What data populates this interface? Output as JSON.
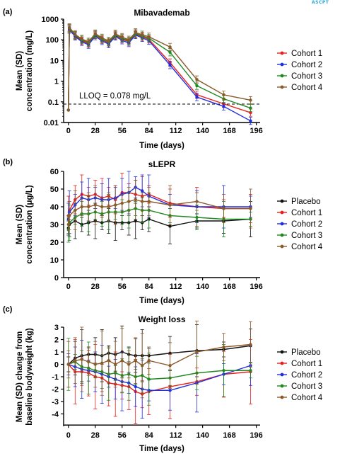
{
  "logo": {
    "text": "ASCPT",
    "color": "#2aa6d8"
  },
  "colors": {
    "Placebo": "#111111",
    "Cohort 1": "#e8201c",
    "Cohort 2": "#1f2fe0",
    "Cohort 3": "#1f8a1f",
    "Cohort 4": "#8b5a2b"
  },
  "chart_data": [
    {
      "panel": "(a)",
      "type": "line",
      "title": "Mibavademab",
      "xlabel": "Time (days)",
      "ylabel": "Mean (SD) concentration (mg/L)",
      "yscale": "log",
      "ylim": [
        0.01,
        1000
      ],
      "yticks": [
        0.01,
        0.1,
        1,
        10,
        100,
        1000
      ],
      "ytick_labels": [
        "0.01",
        "0.1",
        "1",
        "10",
        "100",
        "1000"
      ],
      "xlim": [
        -5,
        200
      ],
      "xticks": [
        0,
        28,
        56,
        84,
        112,
        140,
        168,
        196
      ],
      "grid": false,
      "legend": "right",
      "annotation": "LLOQ = 0.078 mg/L",
      "lloq": 0.078,
      "x": [
        0,
        1,
        7,
        14,
        21,
        28,
        35,
        42,
        49,
        56,
        63,
        70,
        77,
        84,
        106,
        134,
        162,
        190
      ],
      "series": [
        {
          "name": "Cohort 1",
          "values": [
            0.04,
            350,
            160,
            90,
            65,
            170,
            100,
            70,
            160,
            110,
            80,
            190,
            140,
            105,
            8,
            0.22,
            0.08,
            0.03
          ]
        },
        {
          "name": "Cohort 2",
          "values": [
            0.04,
            310,
            145,
            80,
            58,
            150,
            88,
            62,
            145,
            95,
            70,
            170,
            125,
            90,
            6,
            0.17,
            0.06,
            0.012
          ]
        },
        {
          "name": "Cohort 3",
          "values": [
            0.04,
            370,
            170,
            100,
            72,
            180,
            110,
            78,
            175,
            120,
            90,
            205,
            155,
            120,
            25,
            0.6,
            0.14,
            0.05
          ]
        },
        {
          "name": "Cohort 4",
          "values": [
            0.04,
            400,
            180,
            110,
            80,
            200,
            125,
            88,
            195,
            135,
            100,
            230,
            175,
            140,
            45,
            1.2,
            0.22,
            0.12
          ]
        }
      ],
      "legend_entries": [
        "Cohort 1",
        "Cohort 2",
        "Cohort 3",
        "Cohort 4"
      ]
    },
    {
      "panel": "(b)",
      "type": "line",
      "title": "sLEPR",
      "xlabel": "Time (days)",
      "ylabel": "Mean (SD) concentration (μg/L)",
      "ylim": [
        0,
        60
      ],
      "yticks": [
        0,
        10,
        20,
        30,
        40,
        50,
        60
      ],
      "xlim": [
        -5,
        200
      ],
      "xticks": [
        0,
        28,
        56,
        84,
        112,
        140,
        168,
        196
      ],
      "grid": false,
      "legend": "right",
      "x": [
        0,
        1,
        7,
        14,
        21,
        28,
        35,
        42,
        49,
        56,
        63,
        70,
        77,
        84,
        106,
        134,
        162,
        190
      ],
      "series": [
        {
          "name": "Placebo",
          "values": [
            28,
            30,
            32,
            30,
            31,
            32,
            31,
            32,
            31,
            31,
            31,
            32,
            31,
            33,
            29,
            32,
            32,
            33
          ]
        },
        {
          "name": "Cohort 1",
          "values": [
            35,
            38,
            44,
            47,
            46,
            47,
            45,
            46,
            44,
            48,
            48,
            47,
            46,
            47,
            42,
            40,
            39,
            39
          ]
        },
        {
          "name": "Cohort 2",
          "values": [
            33,
            37,
            41,
            45,
            44,
            45,
            44,
            44,
            45,
            47,
            48,
            51,
            49,
            46,
            41,
            40,
            40,
            40
          ]
        },
        {
          "name": "Cohort 3",
          "values": [
            27,
            31,
            34,
            36,
            36,
            37,
            36,
            37,
            37,
            37,
            38,
            39,
            38,
            38,
            35,
            34,
            33,
            33
          ]
        },
        {
          "name": "Cohort 4",
          "values": [
            30,
            35,
            38,
            40,
            40,
            41,
            40,
            40,
            41,
            42,
            43,
            44,
            43,
            43,
            41,
            43,
            39,
            39
          ]
        }
      ],
      "legend_entries": [
        "Placebo",
        "Cohort 1",
        "Cohort 2",
        "Cohort 3",
        "Cohort 4"
      ]
    },
    {
      "panel": "(c)",
      "type": "line",
      "title": "Weight loss",
      "xlabel": "Time (days)",
      "ylabel": "Mean (SD) change from baseline bodyweight (kg)",
      "ylim": [
        -5,
        3
      ],
      "yticks": [
        -4,
        -3,
        -2,
        -1,
        0,
        1,
        2,
        3
      ],
      "xlim": [
        -5,
        200
      ],
      "xticks": [
        0,
        28,
        56,
        84,
        112,
        140,
        168,
        196
      ],
      "grid": false,
      "legend": "right",
      "x": [
        0,
        7,
        14,
        21,
        28,
        35,
        42,
        49,
        56,
        63,
        70,
        77,
        84,
        106,
        134,
        162,
        190
      ],
      "series": [
        {
          "name": "Placebo",
          "values": [
            0,
            0.5,
            0.7,
            0.8,
            0.8,
            0.7,
            0.9,
            0.8,
            1.0,
            0.8,
            0.7,
            0.7,
            0.7,
            0.9,
            1.1,
            1.2,
            1.5
          ]
        },
        {
          "name": "Cohort 1",
          "values": [
            0,
            -0.6,
            -0.6,
            -0.7,
            -1.0,
            -1.1,
            -1.5,
            -1.6,
            -1.7,
            -1.8,
            -2.2,
            -2.4,
            -2.2,
            -1.8,
            -1.4,
            -0.8,
            -0.6
          ]
        },
        {
          "name": "Cohort 2",
          "values": [
            0,
            -0.2,
            -0.4,
            -0.5,
            -0.6,
            -0.8,
            -1.0,
            -1.2,
            -1.4,
            -1.5,
            -1.8,
            -2.0,
            -2.1,
            -2.1,
            -1.5,
            -0.8,
            -0.1
          ]
        },
        {
          "name": "Cohort 3",
          "values": [
            0,
            0.2,
            -0.2,
            -0.3,
            -0.5,
            -0.6,
            -0.8,
            -0.7,
            -0.9,
            -0.8,
            -1.0,
            -0.9,
            -1.2,
            -1.1,
            -0.7,
            -0.5,
            -0.5
          ]
        },
        {
          "name": "Cohort 4",
          "values": [
            0,
            0.3,
            0.4,
            0.2,
            0.0,
            0.1,
            0.3,
            0.0,
            0.3,
            0.0,
            0.3,
            -0.1,
            0.3,
            -0.1,
            1.0,
            1.4,
            1.6
          ]
        }
      ],
      "legend_entries": [
        "Placebo",
        "Cohort 1",
        "Cohort 2",
        "Cohort 3",
        "Cohort 4"
      ]
    }
  ]
}
